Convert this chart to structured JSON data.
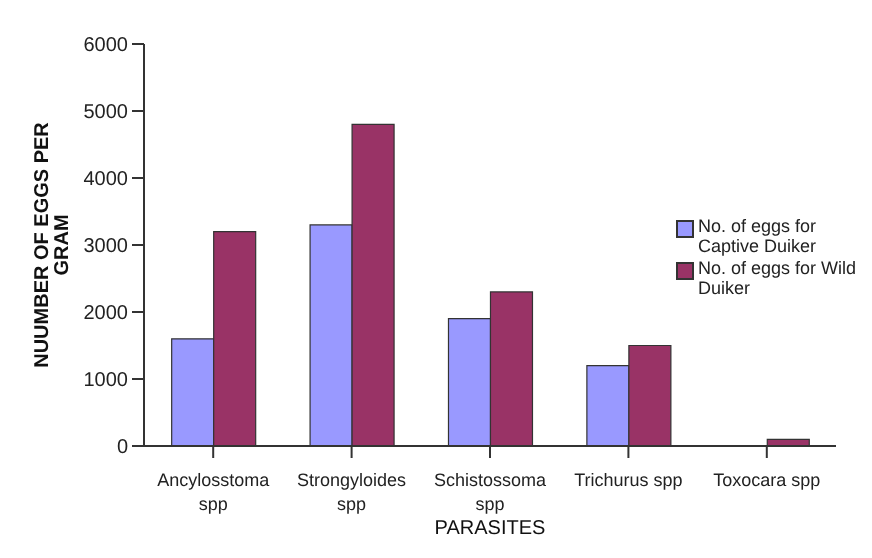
{
  "chart_data": {
    "type": "bar",
    "xlabel": "PARASITES",
    "ylabel": "NUUMBER OF EGGS PER GRAM",
    "categories": [
      "Ancylosstoma spp",
      "Strongyloides spp",
      "Schistossoma spp",
      "Trichurus spp",
      "Toxocara spp"
    ],
    "series": [
      {
        "name": "No. of eggs for Captive Duiker",
        "color": "#9999ff",
        "values": [
          1600,
          3300,
          1900,
          1200,
          0
        ]
      },
      {
        "name": "No. of eggs for Wild Duiker",
        "color": "#993366",
        "values": [
          3200,
          4800,
          2300,
          1500,
          100
        ]
      }
    ],
    "ylim": [
      0,
      6000
    ],
    "yticks": [
      0,
      1000,
      2000,
      3000,
      4000,
      5000,
      6000
    ],
    "grid": false,
    "legend": "right"
  }
}
